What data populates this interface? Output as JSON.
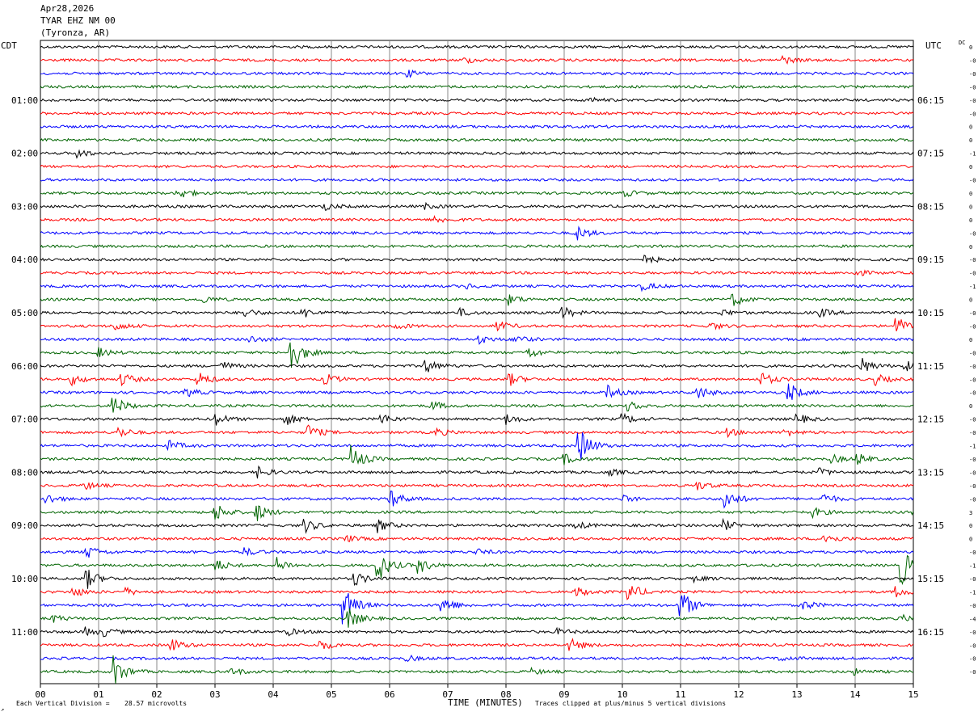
{
  "header": {
    "date": "Apr28,2026",
    "station": "TYAR EHZ NM 00",
    "location": "(Tyronza, AR)"
  },
  "left_timezone": "CDT",
  "right_timezone": "UTC",
  "dc_label": "DC",
  "footer": {
    "scale_prefix": "Each Vertical Division =",
    "scale_value": "28.57 microvolts",
    "xlabel": "TIME (MINUTES)",
    "clip_note": "Traces clipped at plus/minus 5 vertical divisions"
  },
  "colors": {
    "trace_cycle": [
      "#000000",
      "#ff0000",
      "#0000ff",
      "#006400"
    ],
    "grid": "#888888"
  },
  "chart_data": {
    "type": "line",
    "title": "TYAR EHZ NM 00",
    "xlabel": "TIME (MINUTES)",
    "xlim": [
      0,
      15
    ],
    "x_ticks": [
      "00",
      "01",
      "02",
      "03",
      "04",
      "05",
      "06",
      "07",
      "08",
      "09",
      "10",
      "11",
      "12",
      "13",
      "14",
      "15"
    ],
    "trace_interval_minutes": 15,
    "trace_count": 48,
    "left_time_labels": [
      "01:00",
      "02:00",
      "03:00",
      "04:00",
      "05:00",
      "06:00",
      "07:00",
      "08:00",
      "09:00",
      "10:00",
      "11:00"
    ],
    "right_time_labels": [
      "06:15",
      "07:15",
      "08:15",
      "09:15",
      "10:15",
      "11:15",
      "12:15",
      "13:15",
      "14:15",
      "15:15",
      "16:15"
    ],
    "dc_offsets": [
      "0",
      "-0",
      "-0",
      "-0",
      "-0",
      "-0",
      "0",
      "0",
      "-1",
      "0",
      "-0",
      "0",
      "0",
      "0",
      "-0",
      "0",
      "-0",
      "-0",
      "-1",
      "0",
      "-0",
      "-0",
      "0",
      "-0",
      "-0",
      "-0",
      "-0",
      "0",
      "-0",
      "-0",
      "-1",
      "-0",
      "-0",
      "-0",
      "-0",
      "3",
      "0",
      "0",
      "-0",
      "-1",
      "-0",
      "-1",
      "-0",
      "-4",
      "-0",
      "-0",
      "-0",
      "-0"
    ],
    "events": [
      {
        "trace": 1,
        "minute": 12.75,
        "amp": 0.6
      },
      {
        "trace": 1,
        "minute": 7.3,
        "amp": 0.4
      },
      {
        "trace": 2,
        "minute": 6.3,
        "amp": 0.5
      },
      {
        "trace": 4,
        "minute": 9.45,
        "amp": 0.3
      },
      {
        "trace": 8,
        "minute": 0.6,
        "amp": 0.8
      },
      {
        "trace": 11,
        "minute": 2.35,
        "amp": 1.0
      },
      {
        "trace": 11,
        "minute": 10.05,
        "amp": 0.5
      },
      {
        "trace": 12,
        "minute": 4.85,
        "amp": 0.6
      },
      {
        "trace": 12,
        "minute": 6.6,
        "amp": 0.4
      },
      {
        "trace": 13,
        "minute": 6.8,
        "amp": 0.5
      },
      {
        "trace": 14,
        "minute": 9.2,
        "amp": 1.2
      },
      {
        "trace": 16,
        "minute": 10.4,
        "amp": 0.6
      },
      {
        "trace": 17,
        "minute": 14.0,
        "amp": 0.5
      },
      {
        "trace": 18,
        "minute": 7.3,
        "amp": 0.4
      },
      {
        "trace": 18,
        "minute": 10.35,
        "amp": 0.6
      },
      {
        "trace": 19,
        "minute": 2.8,
        "amp": 0.5
      },
      {
        "trace": 19,
        "minute": 8.05,
        "amp": 0.8
      },
      {
        "trace": 19,
        "minute": 11.9,
        "amp": 1.0
      },
      {
        "trace": 20,
        "minute": 3.5,
        "amp": 0.7
      },
      {
        "trace": 20,
        "minute": 4.5,
        "amp": 0.8
      },
      {
        "trace": 20,
        "minute": 7.2,
        "amp": 0.6
      },
      {
        "trace": 20,
        "minute": 8.95,
        "amp": 1.0
      },
      {
        "trace": 20,
        "minute": 11.7,
        "amp": 0.5
      },
      {
        "trace": 20,
        "minute": 13.4,
        "amp": 0.6
      },
      {
        "trace": 21,
        "minute": 1.3,
        "amp": 0.6
      },
      {
        "trace": 21,
        "minute": 6.1,
        "amp": 0.5
      },
      {
        "trace": 21,
        "minute": 7.85,
        "amp": 0.8
      },
      {
        "trace": 21,
        "minute": 11.5,
        "amp": 0.6
      },
      {
        "trace": 21,
        "minute": 14.7,
        "amp": 1.5
      },
      {
        "trace": 22,
        "minute": 3.6,
        "amp": 0.5
      },
      {
        "trace": 22,
        "minute": 7.55,
        "amp": 0.6
      },
      {
        "trace": 22,
        "minute": 8.15,
        "amp": 0.6
      },
      {
        "trace": 23,
        "minute": 1.0,
        "amp": 0.7
      },
      {
        "trace": 23,
        "minute": 4.3,
        "amp": 3.0
      },
      {
        "trace": 23,
        "minute": 8.35,
        "amp": 1.0
      },
      {
        "trace": 24,
        "minute": 3.1,
        "amp": 0.7
      },
      {
        "trace": 24,
        "minute": 6.6,
        "amp": 1.2
      },
      {
        "trace": 24,
        "minute": 14.1,
        "amp": 1.3
      },
      {
        "trace": 24,
        "minute": 14.85,
        "amp": 0.8
      },
      {
        "trace": 25,
        "minute": 0.55,
        "amp": 0.8
      },
      {
        "trace": 25,
        "minute": 1.4,
        "amp": 1.0
      },
      {
        "trace": 25,
        "minute": 2.7,
        "amp": 1.2
      },
      {
        "trace": 25,
        "minute": 4.9,
        "amp": 0.8
      },
      {
        "trace": 25,
        "minute": 8.05,
        "amp": 1.0
      },
      {
        "trace": 25,
        "minute": 12.4,
        "amp": 1.0
      },
      {
        "trace": 25,
        "minute": 14.35,
        "amp": 0.8
      },
      {
        "trace": 26,
        "minute": 2.5,
        "amp": 0.7
      },
      {
        "trace": 26,
        "minute": 9.75,
        "amp": 1.0
      },
      {
        "trace": 26,
        "minute": 11.3,
        "amp": 1.0
      },
      {
        "trace": 26,
        "minute": 12.85,
        "amp": 1.5
      },
      {
        "trace": 27,
        "minute": 1.25,
        "amp": 1.5
      },
      {
        "trace": 27,
        "minute": 6.7,
        "amp": 0.8
      },
      {
        "trace": 27,
        "minute": 10.1,
        "amp": 0.8
      },
      {
        "trace": 28,
        "minute": 3.0,
        "amp": 1.0
      },
      {
        "trace": 28,
        "minute": 4.2,
        "amp": 1.0
      },
      {
        "trace": 28,
        "minute": 5.85,
        "amp": 0.8
      },
      {
        "trace": 28,
        "minute": 8.0,
        "amp": 0.8
      },
      {
        "trace": 28,
        "minute": 10.0,
        "amp": 0.8
      },
      {
        "trace": 28,
        "minute": 13.0,
        "amp": 0.8
      },
      {
        "trace": 29,
        "minute": 1.35,
        "amp": 0.8
      },
      {
        "trace": 29,
        "minute": 4.6,
        "amp": 1.2
      },
      {
        "trace": 29,
        "minute": 6.8,
        "amp": 0.6
      },
      {
        "trace": 29,
        "minute": 11.8,
        "amp": 0.6
      },
      {
        "trace": 29,
        "minute": 12.8,
        "amp": 0.6
      },
      {
        "trace": 30,
        "minute": 2.2,
        "amp": 0.8
      },
      {
        "trace": 30,
        "minute": 9.25,
        "amp": 3.0
      },
      {
        "trace": 31,
        "minute": 5.35,
        "amp": 2.0
      },
      {
        "trace": 31,
        "minute": 9.0,
        "amp": 0.8
      },
      {
        "trace": 31,
        "minute": 13.6,
        "amp": 0.6
      },
      {
        "trace": 31,
        "minute": 14.05,
        "amp": 0.8
      },
      {
        "trace": 32,
        "minute": 3.75,
        "amp": 0.8
      },
      {
        "trace": 32,
        "minute": 9.8,
        "amp": 0.4
      },
      {
        "trace": 32,
        "minute": 13.4,
        "amp": 0.5
      },
      {
        "trace": 33,
        "minute": 0.75,
        "amp": 0.6
      },
      {
        "trace": 33,
        "minute": 11.3,
        "amp": 0.6
      },
      {
        "trace": 34,
        "minute": 0.1,
        "amp": 0.8
      },
      {
        "trace": 34,
        "minute": 6.0,
        "amp": 1.5
      },
      {
        "trace": 34,
        "minute": 10.0,
        "amp": 0.5
      },
      {
        "trace": 34,
        "minute": 11.75,
        "amp": 1.8
      },
      {
        "trace": 34,
        "minute": 13.45,
        "amp": 0.8
      },
      {
        "trace": 35,
        "minute": 3.0,
        "amp": 1.5
      },
      {
        "trace": 35,
        "minute": 3.7,
        "amp": 1.5
      },
      {
        "trace": 35,
        "minute": 13.25,
        "amp": 0.8
      },
      {
        "trace": 35,
        "minute": 15.0,
        "amp": 0.5
      },
      {
        "trace": 36,
        "minute": 4.55,
        "amp": 1.0
      },
      {
        "trace": 36,
        "minute": 5.8,
        "amp": 1.0
      },
      {
        "trace": 36,
        "minute": 9.2,
        "amp": 0.6
      },
      {
        "trace": 36,
        "minute": 11.75,
        "amp": 0.8
      },
      {
        "trace": 37,
        "minute": 5.25,
        "amp": 0.5
      },
      {
        "trace": 37,
        "minute": 13.45,
        "amp": 1.0
      },
      {
        "trace": 38,
        "minute": 0.8,
        "amp": 1.0
      },
      {
        "trace": 38,
        "minute": 3.5,
        "amp": 0.6
      },
      {
        "trace": 38,
        "minute": 7.5,
        "amp": 0.4
      },
      {
        "trace": 39,
        "minute": 3.0,
        "amp": 1.0
      },
      {
        "trace": 39,
        "minute": 4.05,
        "amp": 1.2
      },
      {
        "trace": 39,
        "minute": 5.8,
        "amp": 2.5
      },
      {
        "trace": 39,
        "minute": 6.5,
        "amp": 1.2
      },
      {
        "trace": 39,
        "minute": 14.8,
        "amp": 3.0
      },
      {
        "trace": 40,
        "minute": 0.8,
        "amp": 1.5
      },
      {
        "trace": 40,
        "minute": 5.4,
        "amp": 1.0
      },
      {
        "trace": 40,
        "minute": 11.25,
        "amp": 0.4
      },
      {
        "trace": 41,
        "minute": 0.55,
        "amp": 0.8
      },
      {
        "trace": 41,
        "minute": 1.45,
        "amp": 0.6
      },
      {
        "trace": 41,
        "minute": 9.2,
        "amp": 0.8
      },
      {
        "trace": 41,
        "minute": 10.1,
        "amp": 1.5
      },
      {
        "trace": 41,
        "minute": 14.7,
        "amp": 0.8
      },
      {
        "trace": 42,
        "minute": 5.2,
        "amp": 3.0
      },
      {
        "trace": 42,
        "minute": 6.9,
        "amp": 1.5
      },
      {
        "trace": 42,
        "minute": 11.0,
        "amp": 2.5
      },
      {
        "trace": 42,
        "minute": 13.1,
        "amp": 0.8
      },
      {
        "trace": 43,
        "minute": 0.2,
        "amp": 0.6
      },
      {
        "trace": 43,
        "minute": 5.3,
        "amp": 1.5
      },
      {
        "trace": 43,
        "minute": 14.8,
        "amp": 0.5
      },
      {
        "trace": 44,
        "minute": 0.8,
        "amp": 0.6
      },
      {
        "trace": 44,
        "minute": 1.1,
        "amp": 0.5
      },
      {
        "trace": 44,
        "minute": 4.25,
        "amp": 0.5
      },
      {
        "trace": 44,
        "minute": 8.9,
        "amp": 0.4
      },
      {
        "trace": 45,
        "minute": 2.25,
        "amp": 1.0
      },
      {
        "trace": 45,
        "minute": 4.8,
        "amp": 0.8
      },
      {
        "trace": 45,
        "minute": 9.1,
        "amp": 1.0
      },
      {
        "trace": 46,
        "minute": 12.7,
        "amp": 0.4
      },
      {
        "trace": 46,
        "minute": 6.3,
        "amp": 0.4
      },
      {
        "trace": 47,
        "minute": 1.25,
        "amp": 2.5
      },
      {
        "trace": 47,
        "minute": 3.3,
        "amp": 0.5
      },
      {
        "trace": 47,
        "minute": 8.45,
        "amp": 0.4
      },
      {
        "trace": 47,
        "minute": 14.0,
        "amp": 0.4
      }
    ]
  }
}
